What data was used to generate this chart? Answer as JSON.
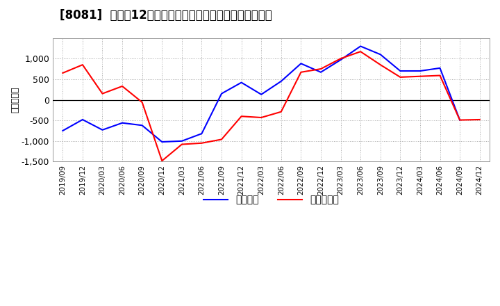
{
  "title": "[8081]  利益の12か月移動合計の対前年同期増減額の推移",
  "ylabel": "（百万円）",
  "x_labels": [
    "2019/09",
    "2019/12",
    "2020/03",
    "2020/06",
    "2020/09",
    "2020/12",
    "2021/03",
    "2021/06",
    "2021/09",
    "2021/12",
    "2022/03",
    "2022/06",
    "2022/09",
    "2022/12",
    "2023/03",
    "2023/06",
    "2023/09",
    "2023/12",
    "2024/03",
    "2024/06",
    "2024/09",
    "2024/12"
  ],
  "keijo_rieki": [
    -750,
    -480,
    -730,
    -560,
    -620,
    -1020,
    -1000,
    -820,
    150,
    420,
    130,
    450,
    880,
    670,
    970,
    1300,
    1100,
    700,
    700,
    770,
    -490,
    null
  ],
  "touki_jun_rieki": [
    650,
    850,
    150,
    330,
    -60,
    -1480,
    -1080,
    -1050,
    -960,
    -400,
    -430,
    -290,
    670,
    750,
    1000,
    1170,
    850,
    550,
    570,
    590,
    -490,
    -480
  ],
  "keijo_color": "#0000ff",
  "touki_color": "#ff0000",
  "ylim": [
    -1500,
    1500
  ],
  "yticks": [
    -1500,
    -1000,
    -500,
    0,
    500,
    1000
  ],
  "background_color": "#ffffff",
  "grid_color": "#aaaaaa",
  "legend_keijo": "経常利益",
  "legend_touki": "当期純利益",
  "title_fontsize": 12,
  "axis_fontsize": 9,
  "legend_fontsize": 10
}
